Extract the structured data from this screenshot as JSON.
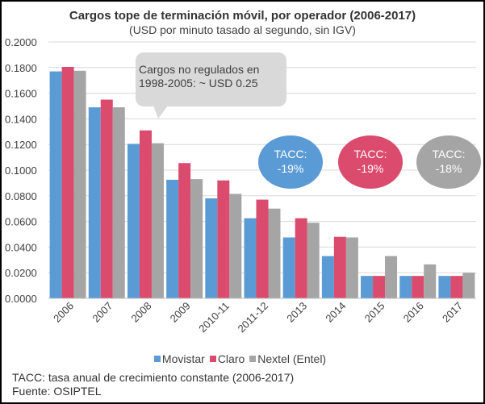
{
  "chart_data": {
    "type": "bar",
    "title": "Cargos tope de terminación móvil, por operador (2006-2017)",
    "subtitle": "(USD por minuto tasado al segundo, sin IGV)",
    "categories": [
      "2006",
      "2007",
      "2008",
      "2009",
      "2010-11",
      "2011-12",
      "2013",
      "2014",
      "2015",
      "2016",
      "2017"
    ],
    "series": [
      {
        "name": "Movistar",
        "color": "#5B9BD5",
        "values": [
          0.177,
          0.149,
          0.1205,
          0.0925,
          0.078,
          0.0625,
          0.0475,
          0.033,
          0.0175,
          0.0175,
          0.0175
        ]
      },
      {
        "name": "Claro",
        "color": "#DB4B6E",
        "values": [
          0.1805,
          0.155,
          0.131,
          0.1055,
          0.092,
          0.077,
          0.0625,
          0.048,
          0.0175,
          0.0175,
          0.0175
        ]
      },
      {
        "name": "Nextel (Entel)",
        "color": "#A5A5A5",
        "values": [
          0.1775,
          0.149,
          0.121,
          0.093,
          0.0815,
          0.07,
          0.059,
          0.0475,
          0.033,
          0.0265,
          0.02
        ]
      }
    ],
    "ylim": [
      0,
      0.2
    ],
    "yticks": [
      "0.0000",
      "0.0200",
      "0.0400",
      "0.0600",
      "0.0800",
      "0.1000",
      "0.1200",
      "0.1400",
      "0.1600",
      "0.1800",
      "0.2000"
    ],
    "grid": true,
    "legend_position": "bottom"
  },
  "annotations": {
    "callout": "Cargos no regulados en 1998-2005: ~ USD 0.25",
    "tacc": [
      {
        "label": "TACC:",
        "value": "-19%",
        "color": "#5B9BD5"
      },
      {
        "label": "TACC:",
        "value": "-19%",
        "color": "#DB4B6E"
      },
      {
        "label": "TACC:",
        "value": "-18%",
        "color": "#A5A5A5"
      }
    ]
  },
  "footnotes": {
    "tacc_definition": "TACC: tasa anual de crecimiento constante (2006-2017)",
    "source": "Fuente: OSIPTEL"
  },
  "colors": {
    "gridline": "#D9D9D9",
    "callout_bg": "#D9D9D9"
  }
}
